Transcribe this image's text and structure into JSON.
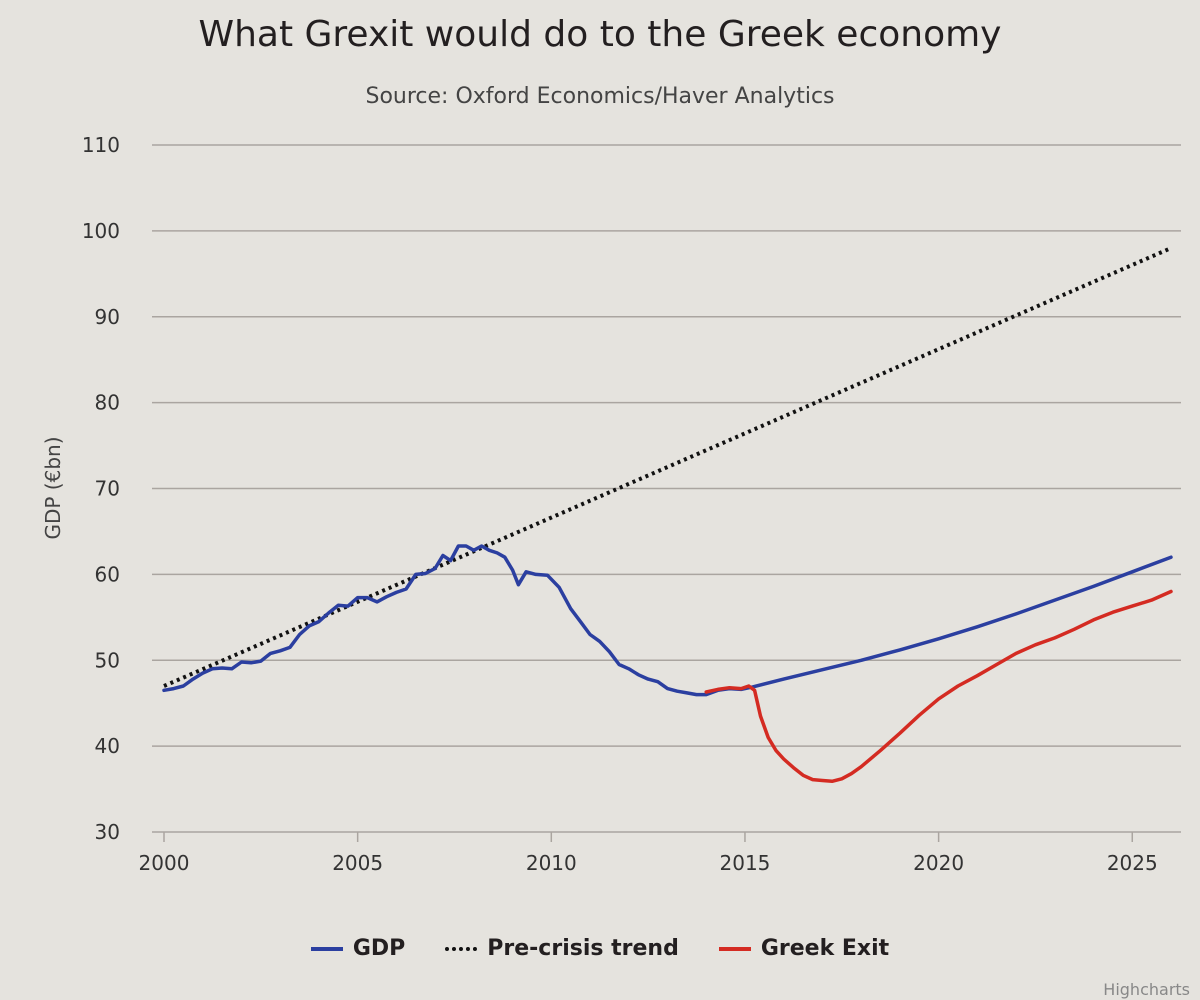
{
  "chart_data": {
    "type": "line",
    "title": "What Grexit would do to the Greek economy",
    "subtitle": "Source: Oxford Economics/Haver Analytics",
    "xlabel": "",
    "ylabel": "GDP (€bn)",
    "xlim": [
      2000,
      2026
    ],
    "ylim": [
      30,
      110
    ],
    "x_ticks": [
      2000,
      2005,
      2010,
      2015,
      2020,
      2025
    ],
    "y_ticks": [
      30,
      40,
      50,
      60,
      70,
      80,
      90,
      100,
      110
    ],
    "grid": true,
    "legend_position": "bottom-center",
    "credits": "Highcharts",
    "series": [
      {
        "name": "GDP",
        "color": "#2b3fa0",
        "style": "solid",
        "points": [
          [
            2000.0,
            46.5
          ],
          [
            2000.25,
            46.7
          ],
          [
            2000.5,
            47.0
          ],
          [
            2000.75,
            47.8
          ],
          [
            2001.0,
            48.5
          ],
          [
            2001.25,
            49.0
          ],
          [
            2001.5,
            49.1
          ],
          [
            2001.75,
            49.0
          ],
          [
            2002.0,
            49.8
          ],
          [
            2002.25,
            49.7
          ],
          [
            2002.5,
            49.9
          ],
          [
            2002.75,
            50.8
          ],
          [
            2003.0,
            51.1
          ],
          [
            2003.25,
            51.5
          ],
          [
            2003.5,
            53.0
          ],
          [
            2003.75,
            54.0
          ],
          [
            2004.0,
            54.5
          ],
          [
            2004.25,
            55.5
          ],
          [
            2004.5,
            56.4
          ],
          [
            2004.75,
            56.3
          ],
          [
            2005.0,
            57.3
          ],
          [
            2005.25,
            57.3
          ],
          [
            2005.5,
            56.8
          ],
          [
            2005.75,
            57.4
          ],
          [
            2006.0,
            57.9
          ],
          [
            2006.25,
            58.3
          ],
          [
            2006.5,
            60.0
          ],
          [
            2006.75,
            60.1
          ],
          [
            2007.0,
            60.7
          ],
          [
            2007.2,
            62.2
          ],
          [
            2007.4,
            61.6
          ],
          [
            2007.6,
            63.3
          ],
          [
            2007.8,
            63.3
          ],
          [
            2008.0,
            62.8
          ],
          [
            2008.2,
            63.3
          ],
          [
            2008.4,
            62.8
          ],
          [
            2008.6,
            62.5
          ],
          [
            2008.8,
            62.0
          ],
          [
            2009.0,
            60.5
          ],
          [
            2009.15,
            58.8
          ],
          [
            2009.35,
            60.3
          ],
          [
            2009.6,
            60.0
          ],
          [
            2009.9,
            59.9
          ],
          [
            2010.2,
            58.5
          ],
          [
            2010.5,
            56.0
          ],
          [
            2010.75,
            54.5
          ],
          [
            2011.0,
            53.0
          ],
          [
            2011.25,
            52.2
          ],
          [
            2011.5,
            51.0
          ],
          [
            2011.75,
            49.5
          ],
          [
            2012.0,
            49.0
          ],
          [
            2012.25,
            48.3
          ],
          [
            2012.5,
            47.8
          ],
          [
            2012.75,
            47.5
          ],
          [
            2013.0,
            46.7
          ],
          [
            2013.25,
            46.4
          ],
          [
            2013.5,
            46.2
          ],
          [
            2013.75,
            46.0
          ],
          [
            2014.0,
            46.0
          ],
          [
            2014.3,
            46.5
          ],
          [
            2014.6,
            46.7
          ],
          [
            2014.9,
            46.6
          ],
          [
            2015.2,
            46.9
          ],
          [
            2016.0,
            47.8
          ],
          [
            2017.0,
            48.9
          ],
          [
            2018.0,
            50.0
          ],
          [
            2019.0,
            51.2
          ],
          [
            2020.0,
            52.5
          ],
          [
            2021.0,
            53.9
          ],
          [
            2022.0,
            55.4
          ],
          [
            2023.0,
            57.0
          ],
          [
            2024.0,
            58.6
          ],
          [
            2025.0,
            60.3
          ],
          [
            2026.0,
            62.0
          ]
        ]
      },
      {
        "name": "Pre-crisis trend",
        "color": "#111111",
        "style": "dotted",
        "points": [
          [
            2000.0,
            47.0
          ],
          [
            2026.0,
            98.0
          ]
        ]
      },
      {
        "name": "Greek Exit",
        "color": "#d42b22",
        "style": "solid",
        "points": [
          [
            2014.0,
            46.3
          ],
          [
            2014.3,
            46.6
          ],
          [
            2014.6,
            46.8
          ],
          [
            2014.9,
            46.7
          ],
          [
            2015.1,
            47.0
          ],
          [
            2015.25,
            46.5
          ],
          [
            2015.4,
            43.5
          ],
          [
            2015.6,
            41.0
          ],
          [
            2015.8,
            39.5
          ],
          [
            2016.0,
            38.5
          ],
          [
            2016.25,
            37.5
          ],
          [
            2016.5,
            36.6
          ],
          [
            2016.75,
            36.1
          ],
          [
            2017.0,
            36.0
          ],
          [
            2017.25,
            35.9
          ],
          [
            2017.5,
            36.2
          ],
          [
            2017.75,
            36.8
          ],
          [
            2018.0,
            37.6
          ],
          [
            2018.5,
            39.5
          ],
          [
            2019.0,
            41.5
          ],
          [
            2019.5,
            43.6
          ],
          [
            2020.0,
            45.5
          ],
          [
            2020.5,
            47.0
          ],
          [
            2021.0,
            48.2
          ],
          [
            2021.5,
            49.5
          ],
          [
            2022.0,
            50.8
          ],
          [
            2022.5,
            51.8
          ],
          [
            2023.0,
            52.6
          ],
          [
            2023.5,
            53.6
          ],
          [
            2024.0,
            54.7
          ],
          [
            2024.5,
            55.6
          ],
          [
            2025.0,
            56.3
          ],
          [
            2025.5,
            57.0
          ],
          [
            2026.0,
            58.0
          ]
        ]
      }
    ]
  },
  "legend": {
    "items": [
      {
        "label": "GDP",
        "color": "#2b3fa0"
      },
      {
        "label": "Pre-crisis trend",
        "color": "#111111"
      },
      {
        "label": "Greek Exit",
        "color": "#d42b22"
      }
    ]
  }
}
